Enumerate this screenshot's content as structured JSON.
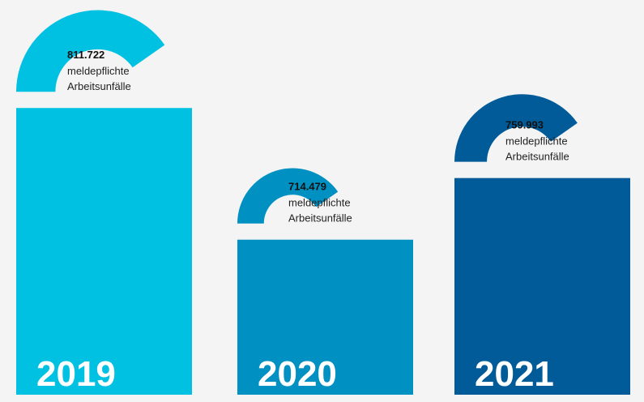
{
  "chart_data": {
    "type": "bar",
    "categories": [
      "2019",
      "2020",
      "2021"
    ],
    "values": [
      811722,
      714479,
      759993
    ],
    "value_labels": [
      "811.722",
      "714.479",
      "759.993"
    ],
    "label_lines": [
      "meldepflichte",
      "Arbeitsunfälle"
    ],
    "colors": [
      "#00c1e2",
      "#0091c2",
      "#005b98"
    ],
    "ylim": [
      600000,
      840000
    ]
  }
}
